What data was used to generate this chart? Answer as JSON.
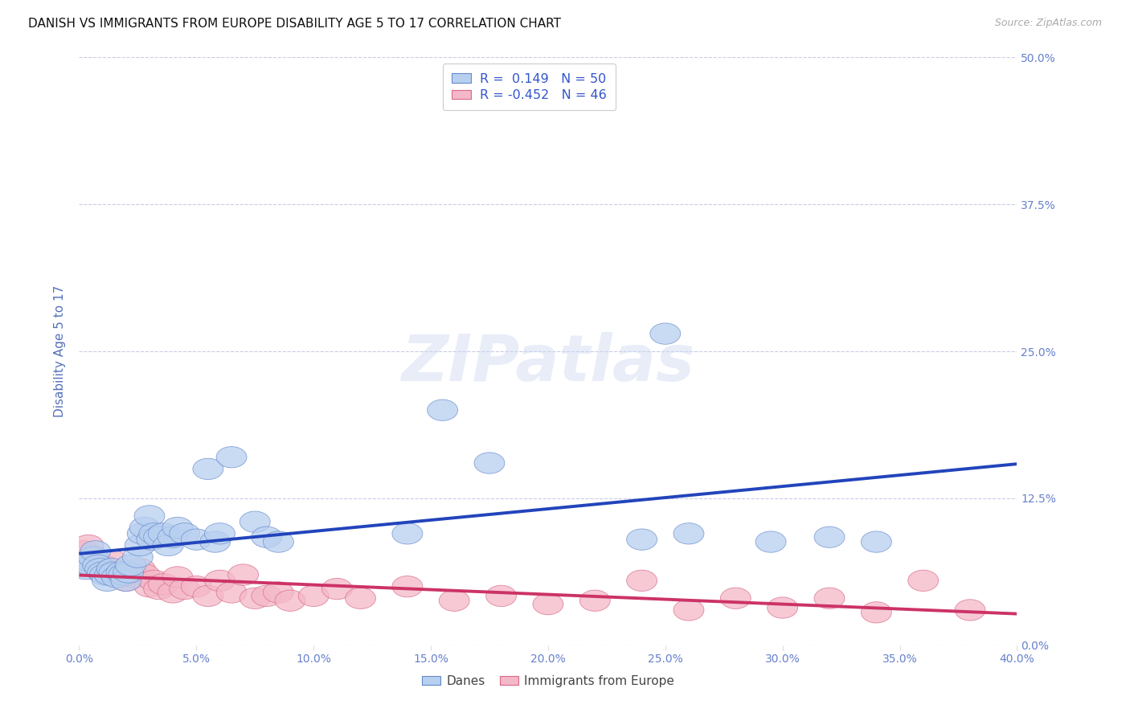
{
  "title": "DANISH VS IMMIGRANTS FROM EUROPE DISABILITY AGE 5 TO 17 CORRELATION CHART",
  "source": "Source: ZipAtlas.com",
  "ylabel": "Disability Age 5 to 17",
  "xlim": [
    0.0,
    0.4
  ],
  "ylim": [
    0.0,
    0.5
  ],
  "xtick_values": [
    0.0,
    0.05,
    0.1,
    0.15,
    0.2,
    0.25,
    0.3,
    0.35,
    0.4
  ],
  "ytick_values": [
    0.0,
    0.125,
    0.25,
    0.375,
    0.5
  ],
  "ytick_labels": [
    "0.0%",
    "12.5%",
    "25.0%",
    "37.5%",
    "50.0%"
  ],
  "grid_color": "#c8cce8",
  "background_color": "#ffffff",
  "danes_fill": "#b8d0f0",
  "danes_edge": "#6688cc",
  "immigrants_fill": "#f4b8c8",
  "immigrants_edge": "#d86888",
  "danes_line_color": "#2244bb",
  "immigrants_line_color": "#cc3366",
  "legend_R_danes": "0.149",
  "legend_N_danes": "50",
  "legend_R_immigrants": "-0.452",
  "legend_N_immigrants": "46",
  "tick_color": "#6680cc",
  "axis_label_color": "#5570bb",
  "danes_x": [
    0.002,
    0.003,
    0.004,
    0.005,
    0.006,
    0.007,
    0.008,
    0.009,
    0.01,
    0.011,
    0.012,
    0.013,
    0.014,
    0.015,
    0.016,
    0.018,
    0.019,
    0.02,
    0.021,
    0.022,
    0.025,
    0.026,
    0.027,
    0.028,
    0.03,
    0.031,
    0.032,
    0.034,
    0.036,
    0.038,
    0.04,
    0.042,
    0.045,
    0.05,
    0.055,
    0.058,
    0.06,
    0.065,
    0.075,
    0.08,
    0.085,
    0.14,
    0.155,
    0.175,
    0.24,
    0.25,
    0.26,
    0.295,
    0.32,
    0.34
  ],
  "danes_y": [
    0.07,
    0.065,
    0.072,
    0.068,
    0.075,
    0.08,
    0.068,
    0.065,
    0.062,
    0.06,
    0.055,
    0.06,
    0.065,
    0.062,
    0.058,
    0.062,
    0.06,
    0.055,
    0.062,
    0.068,
    0.075,
    0.085,
    0.095,
    0.1,
    0.11,
    0.09,
    0.095,
    0.092,
    0.095,
    0.085,
    0.092,
    0.1,
    0.095,
    0.09,
    0.15,
    0.088,
    0.095,
    0.16,
    0.105,
    0.092,
    0.088,
    0.095,
    0.2,
    0.155,
    0.09,
    0.265,
    0.095,
    0.088,
    0.092,
    0.088
  ],
  "immigrants_x": [
    0.002,
    0.004,
    0.006,
    0.008,
    0.01,
    0.012,
    0.014,
    0.016,
    0.018,
    0.02,
    0.022,
    0.024,
    0.026,
    0.028,
    0.03,
    0.032,
    0.034,
    0.036,
    0.04,
    0.042,
    0.045,
    0.05,
    0.055,
    0.06,
    0.065,
    0.07,
    0.075,
    0.08,
    0.085,
    0.09,
    0.1,
    0.11,
    0.12,
    0.14,
    0.16,
    0.18,
    0.2,
    0.22,
    0.24,
    0.26,
    0.28,
    0.3,
    0.32,
    0.34,
    0.36,
    0.38
  ],
  "immigrants_y": [
    0.08,
    0.085,
    0.075,
    0.07,
    0.068,
    0.065,
    0.072,
    0.06,
    0.058,
    0.055,
    0.062,
    0.058,
    0.065,
    0.06,
    0.05,
    0.055,
    0.048,
    0.052,
    0.045,
    0.058,
    0.048,
    0.05,
    0.042,
    0.055,
    0.045,
    0.06,
    0.04,
    0.042,
    0.045,
    0.038,
    0.042,
    0.048,
    0.04,
    0.05,
    0.038,
    0.042,
    0.035,
    0.038,
    0.055,
    0.03,
    0.04,
    0.032,
    0.04,
    0.028,
    0.055,
    0.03
  ]
}
